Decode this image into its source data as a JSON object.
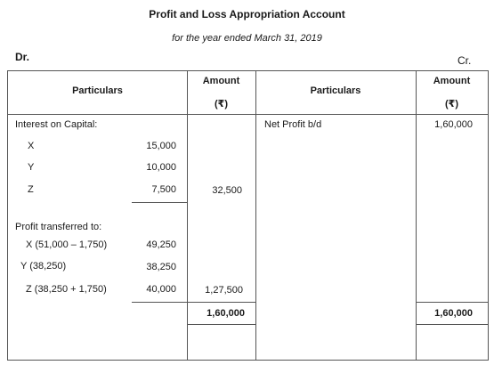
{
  "title": "Profit and Loss Appropriation Account",
  "subtitle": "for the year ended March 31, 2019",
  "dr_label": "Dr.",
  "cr_label": "Cr.",
  "header": {
    "particulars_left": "Particulars",
    "amount_left": "Amount",
    "amount_left_unit": "(₹)",
    "particulars_right": "Particulars",
    "amount_right": "Amount",
    "amount_right_unit": "(₹)"
  },
  "debit": {
    "interest_heading": "Interest on Capital:",
    "interest": [
      {
        "name": "X",
        "value": "15,000"
      },
      {
        "name": "Y",
        "value": "10,000"
      },
      {
        "name": "Z",
        "value": "7,500"
      }
    ],
    "interest_total": "32,500",
    "profit_heading": "Profit transferred to:",
    "profit": [
      {
        "name": "X (51,000 – 1,750)",
        "value": "49,250"
      },
      {
        "name": "Y (38,250)",
        "value": "38,250"
      },
      {
        "name": "Z (38,250 + 1,750)",
        "value": "40,000"
      }
    ],
    "profit_total": "1,27,500",
    "grand_total": "1,60,000"
  },
  "credit": {
    "net_profit_label": "Net Profit b/d",
    "net_profit_value": "1,60,000",
    "grand_total": "1,60,000"
  }
}
